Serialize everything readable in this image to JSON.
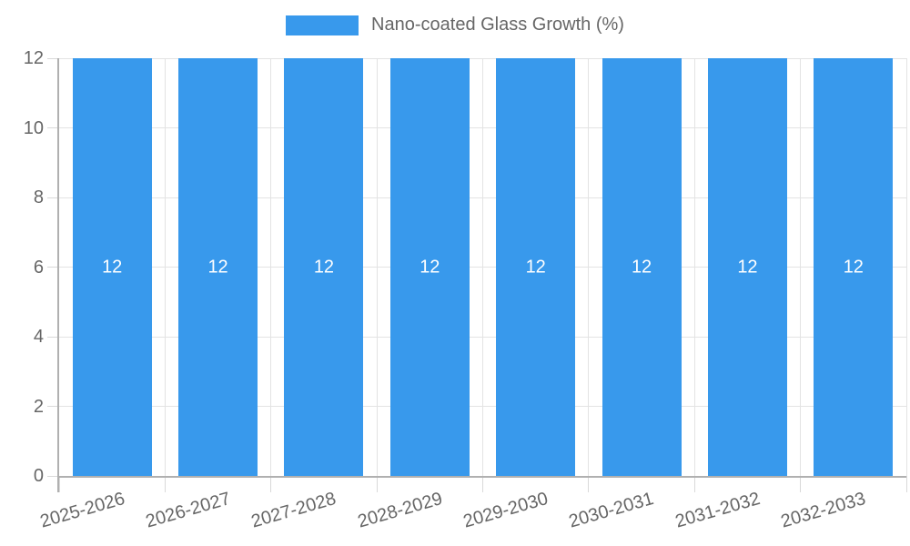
{
  "legend": {
    "label": "Nano-coated Glass Growth (%)"
  },
  "chart_data": {
    "type": "bar",
    "title": "",
    "categories": [
      "2025-2026",
      "2026-2027",
      "2027-2028",
      "2028-2029",
      "2029-2030",
      "2030-2031",
      "2031-2032",
      "2032-2033"
    ],
    "series": [
      {
        "name": "Nano-coated Glass Growth (%)",
        "values": [
          12,
          12,
          12,
          12,
          12,
          12,
          12,
          12
        ]
      }
    ],
    "data_labels": [
      "12",
      "12",
      "12",
      "12",
      "12",
      "12",
      "12",
      "12"
    ],
    "xlabel": "",
    "ylabel": "",
    "ylim": [
      0,
      12
    ],
    "yticks": [
      0,
      2,
      4,
      6,
      8,
      10,
      12
    ],
    "grid": "on",
    "legend_position": "top",
    "colors": {
      "bar": "#3899ec",
      "axis_text": "#666666",
      "grid_line": "#e3e3e3",
      "tick_line": "#d9d9d9",
      "axis_line": "#b0b0b0",
      "data_label": "#ffffff",
      "background": "#ffffff"
    }
  }
}
